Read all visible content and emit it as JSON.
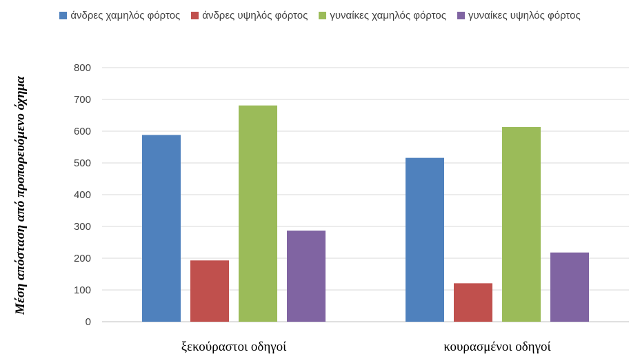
{
  "chart_data": {
    "type": "bar",
    "categories": [
      "ξεκούραστοι οδηγοί",
      "κουρασμένοι οδηγοί"
    ],
    "series": [
      {
        "name": "άνδρες χαμηλός φόρτος",
        "values": [
          588,
          516
        ],
        "color": "#4F81BD"
      },
      {
        "name": "άνδρες υψηλός φόρτος",
        "values": [
          193,
          121
        ],
        "color": "#C0504D"
      },
      {
        "name": "γυναίκες χαμηλός φόρτος",
        "values": [
          681,
          613
        ],
        "color": "#9BBB59"
      },
      {
        "name": "γυναίκες υψηλός φόρτος",
        "values": [
          287,
          218
        ],
        "color": "#8064A2"
      }
    ],
    "ylabel": "Μέση απόσταση από προπορευόμενο όχημα",
    "ylim": [
      0,
      800
    ],
    "yticks": [
      0,
      100,
      200,
      300,
      400,
      500,
      600,
      700,
      800
    ],
    "grid": true,
    "legend": "top"
  }
}
